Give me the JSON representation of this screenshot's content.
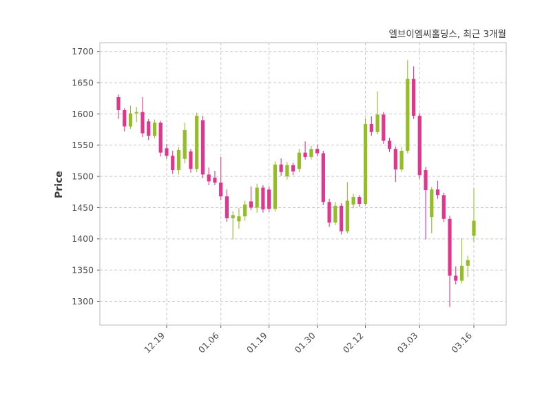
{
  "chart_data": {
    "type": "candlestick",
    "title": "엘브이엠씨홀딩스, 최근 3개월",
    "ylabel": "Price",
    "grid": true,
    "legend": "none",
    "up_color": "#94bd27",
    "down_color": "#e0378e",
    "grid_color": "#c9c9c9",
    "border_color": "#c4c4c4",
    "tick_label_color": "#4a4a4a",
    "ylim": [
      1262,
      1714
    ],
    "yticks": [
      1300,
      1350,
      1400,
      1450,
      1500,
      1550,
      1600,
      1650,
      1700
    ],
    "xticks": [
      {
        "index": 8,
        "label": "12.19"
      },
      {
        "index": 17,
        "label": "01.06"
      },
      {
        "index": 25,
        "label": "01.19"
      },
      {
        "index": 33,
        "label": "01.30"
      },
      {
        "index": 41,
        "label": "02.12"
      },
      {
        "index": 50,
        "label": "03.03"
      },
      {
        "index": 59,
        "label": "03.16"
      }
    ],
    "candles_format": [
      "open",
      "high",
      "low",
      "close"
    ],
    "candles": [
      [
        1627,
        1631,
        1592,
        1606
      ],
      [
        1606,
        1609,
        1572,
        1580
      ],
      [
        1580,
        1613,
        1576,
        1601
      ],
      [
        1601,
        1611,
        1587,
        1603
      ],
      [
        1603,
        1627,
        1563,
        1569
      ],
      [
        1588,
        1592,
        1558,
        1565
      ],
      [
        1565,
        1591,
        1561,
        1586
      ],
      [
        1586,
        1589,
        1532,
        1538
      ],
      [
        1545,
        1552,
        1528,
        1533
      ],
      [
        1533,
        1541,
        1504,
        1510
      ],
      [
        1510,
        1547,
        1503,
        1542
      ],
      [
        1528,
        1586,
        1521,
        1574
      ],
      [
        1540,
        1544,
        1506,
        1512
      ],
      [
        1512,
        1602,
        1507,
        1597
      ],
      [
        1590,
        1597,
        1497,
        1503
      ],
      [
        1503,
        1514,
        1486,
        1492
      ],
      [
        1498,
        1509,
        1486,
        1490
      ],
      [
        1490,
        1531,
        1462,
        1468
      ],
      [
        1468,
        1479,
        1427,
        1433
      ],
      [
        1433,
        1444,
        1399,
        1438
      ],
      [
        1428,
        1449,
        1416,
        1436
      ],
      [
        1436,
        1461,
        1429,
        1455
      ],
      [
        1460,
        1484,
        1446,
        1450
      ],
      [
        1450,
        1488,
        1442,
        1482
      ],
      [
        1482,
        1486,
        1442,
        1447
      ],
      [
        1479,
        1484,
        1443,
        1448
      ],
      [
        1448,
        1524,
        1444,
        1519
      ],
      [
        1519,
        1529,
        1501,
        1507
      ],
      [
        1500,
        1523,
        1495,
        1518
      ],
      [
        1518,
        1522,
        1502,
        1508
      ],
      [
        1512,
        1544,
        1507,
        1538
      ],
      [
        1538,
        1556,
        1527,
        1531
      ],
      [
        1531,
        1549,
        1527,
        1544
      ],
      [
        1544,
        1551,
        1532,
        1537
      ],
      [
        1537,
        1541,
        1454,
        1459
      ],
      [
        1459,
        1464,
        1419,
        1426
      ],
      [
        1426,
        1459,
        1422,
        1453
      ],
      [
        1453,
        1457,
        1407,
        1412
      ],
      [
        1412,
        1491,
        1409,
        1461
      ],
      [
        1455,
        1472,
        1449,
        1467
      ],
      [
        1467,
        1470,
        1451,
        1456
      ],
      [
        1456,
        1593,
        1453,
        1584
      ],
      [
        1584,
        1596,
        1565,
        1571
      ],
      [
        1571,
        1636,
        1567,
        1599
      ],
      [
        1599,
        1603,
        1552,
        1557
      ],
      [
        1557,
        1562,
        1539,
        1544
      ],
      [
        1544,
        1548,
        1491,
        1511
      ],
      [
        1511,
        1547,
        1507,
        1541
      ],
      [
        1541,
        1686,
        1537,
        1656
      ],
      [
        1656,
        1676,
        1592,
        1597
      ],
      [
        1597,
        1601,
        1496,
        1502
      ],
      [
        1510,
        1515,
        1399,
        1478
      ],
      [
        1435,
        1483,
        1409,
        1479
      ],
      [
        1479,
        1493,
        1464,
        1470
      ],
      [
        1470,
        1474,
        1427,
        1432
      ],
      [
        1432,
        1437,
        1291,
        1341
      ],
      [
        1341,
        1356,
        1327,
        1333
      ],
      [
        1333,
        1401,
        1329,
        1357
      ],
      [
        1357,
        1373,
        1339,
        1366
      ],
      [
        1405,
        1481,
        1395,
        1429
      ]
    ]
  }
}
